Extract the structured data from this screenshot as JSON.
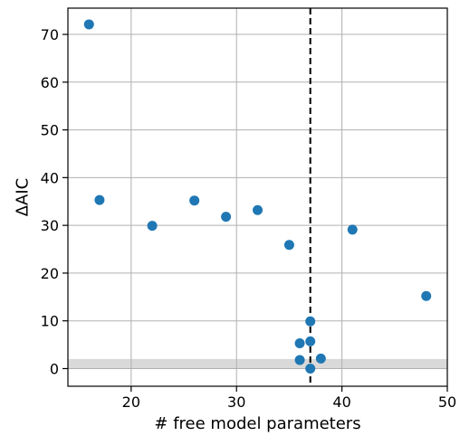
{
  "chart_data": {
    "type": "scatter",
    "title": "",
    "xlabel": "# free model parameters",
    "ylabel": "ΔAIC",
    "xlim": [
      14,
      50
    ],
    "ylim": [
      -3.7,
      75.5
    ],
    "xticks": [
      20,
      30,
      40,
      50
    ],
    "yticks": [
      0,
      10,
      20,
      30,
      40,
      50,
      60,
      70
    ],
    "grid": true,
    "marker_color": "#1f77b4",
    "points": [
      {
        "x": 16,
        "y": 72.1
      },
      {
        "x": 17,
        "y": 35.3
      },
      {
        "x": 22,
        "y": 29.9
      },
      {
        "x": 26,
        "y": 35.2
      },
      {
        "x": 29,
        "y": 31.8
      },
      {
        "x": 32,
        "y": 33.2
      },
      {
        "x": 35,
        "y": 25.9
      },
      {
        "x": 36,
        "y": 5.3
      },
      {
        "x": 36,
        "y": 1.8
      },
      {
        "x": 37,
        "y": 9.9
      },
      {
        "x": 37,
        "y": 5.7
      },
      {
        "x": 37,
        "y": 0.0
      },
      {
        "x": 38,
        "y": 2.1
      },
      {
        "x": 41,
        "y": 29.1
      },
      {
        "x": 48,
        "y": 15.2
      }
    ],
    "vline": {
      "x": 37,
      "style": "dashed",
      "color": "#000000"
    },
    "band": {
      "y_from": 0,
      "y_to": 2,
      "color": "#d9d9d9"
    }
  }
}
